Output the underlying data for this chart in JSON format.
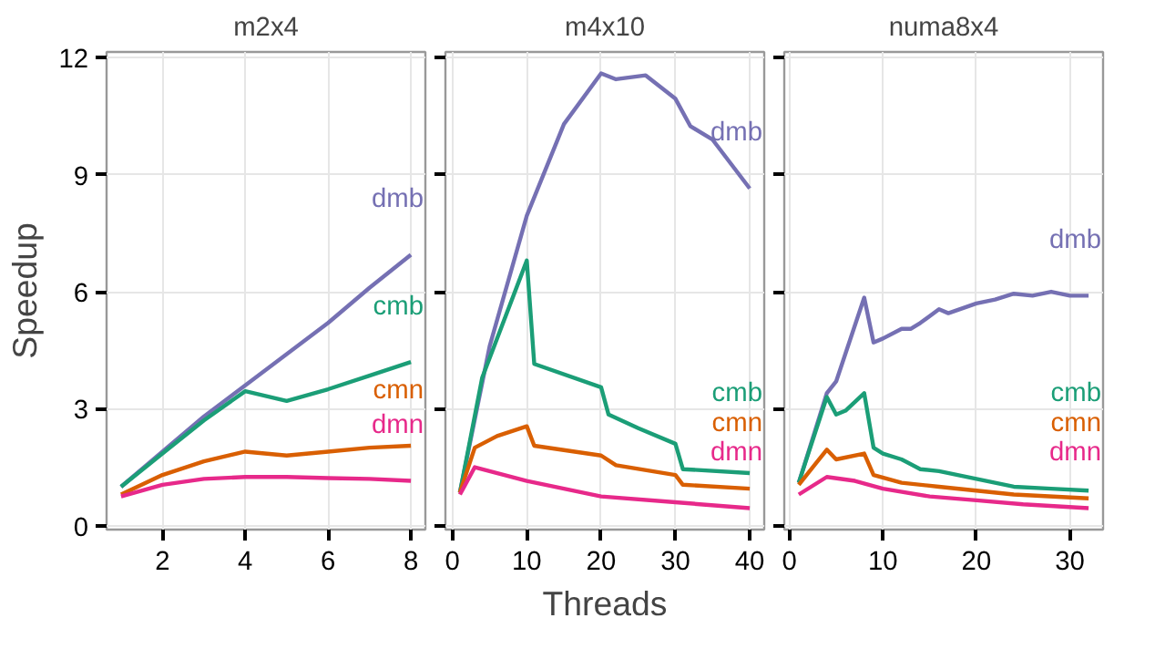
{
  "chart_data": [
    {
      "type": "line",
      "title": "m2x4",
      "ylabel": "Speedup",
      "xlim": [
        0.65,
        8.35
      ],
      "xticks": [
        2,
        4,
        6,
        8
      ],
      "ylim": [
        -0.1,
        12.15
      ],
      "yticks": [
        0,
        3,
        6,
        9,
        12
      ],
      "grid": true,
      "x": [
        1,
        2,
        3,
        4,
        5,
        6,
        7,
        8
      ],
      "series": [
        {
          "name": "dmb",
          "color": "#7570b3",
          "values": [
            1,
            1.9,
            2.8,
            3.6,
            4.4,
            5.2,
            6.1,
            6.95
          ]
        },
        {
          "name": "cmb",
          "color": "#1b9e77",
          "values": [
            1,
            1.85,
            2.7,
            3.45,
            3.2,
            3.5,
            3.85,
            4.2
          ]
        },
        {
          "name": "cmn",
          "color": "#d95f02",
          "values": [
            0.8,
            1.3,
            1.65,
            1.9,
            1.8,
            1.9,
            2.0,
            2.05
          ]
        },
        {
          "name": "dmn",
          "color": "#e7298a",
          "values": [
            0.75,
            1.05,
            1.2,
            1.25,
            1.25,
            1.22,
            1.2,
            1.15
          ]
        }
      ]
    },
    {
      "type": "line",
      "title": "m4x10",
      "xlabel": "Threads",
      "xlim": [
        -0.95,
        41.95
      ],
      "xticks": [
        0,
        10,
        20,
        30,
        40
      ],
      "ylim": [
        -0.1,
        12.15
      ],
      "yticks": [
        0,
        3,
        6,
        9,
        12
      ],
      "grid": true,
      "tick_labels": "x",
      "series": [
        {
          "name": "dmb",
          "color": "#7570b3",
          "x": [
            1,
            5,
            10,
            15,
            20,
            22,
            26,
            30,
            32,
            35,
            40
          ],
          "values": [
            0.85,
            4.6,
            7.95,
            10.3,
            11.6,
            11.45,
            11.55,
            10.95,
            10.25,
            9.9,
            8.65
          ]
        },
        {
          "name": "cmb",
          "color": "#1b9e77",
          "x": [
            1,
            4,
            10,
            11,
            20,
            21,
            25,
            30,
            31,
            40
          ],
          "values": [
            0.85,
            3.8,
            6.8,
            4.15,
            3.55,
            2.85,
            2.5,
            2.1,
            1.45,
            1.35
          ]
        },
        {
          "name": "cmn",
          "color": "#d95f02",
          "x": [
            1,
            3,
            6,
            10,
            11,
            20,
            22,
            30,
            31,
            40
          ],
          "values": [
            0.85,
            2.0,
            2.3,
            2.55,
            2.05,
            1.8,
            1.55,
            1.3,
            1.05,
            0.95
          ]
        },
        {
          "name": "dmn",
          "color": "#e7298a",
          "x": [
            1,
            3,
            10,
            20,
            30,
            40
          ],
          "values": [
            0.8,
            1.5,
            1.15,
            0.75,
            0.6,
            0.45
          ]
        }
      ]
    },
    {
      "type": "line",
      "title": "numa8x4",
      "xlim": [
        -0.55,
        33.55
      ],
      "xticks": [
        0,
        10,
        20,
        30
      ],
      "ylim": [
        -0.1,
        12.15
      ],
      "yticks": [
        0,
        3,
        6,
        9,
        12
      ],
      "grid": true,
      "tick_labels": "x",
      "series": [
        {
          "name": "dmb",
          "color": "#7570b3",
          "x": [
            1,
            4,
            5,
            8,
            9,
            10,
            12,
            13,
            14,
            16,
            17,
            20,
            22,
            24,
            26,
            28,
            30,
            32
          ],
          "values": [
            1.1,
            3.4,
            3.7,
            5.85,
            4.7,
            4.8,
            5.05,
            5.05,
            5.2,
            5.55,
            5.45,
            5.7,
            5.8,
            5.95,
            5.9,
            6.0,
            5.9,
            5.9
          ]
        },
        {
          "name": "cmb",
          "color": "#1b9e77",
          "x": [
            1,
            4,
            5,
            6,
            8,
            9,
            10,
            12,
            14,
            16,
            20,
            24,
            28,
            32
          ],
          "values": [
            1.1,
            3.3,
            2.85,
            2.95,
            3.4,
            2.0,
            1.85,
            1.7,
            1.45,
            1.4,
            1.2,
            1.0,
            0.95,
            0.9
          ]
        },
        {
          "name": "cmn",
          "color": "#d95f02",
          "x": [
            1,
            4,
            5,
            8,
            9,
            12,
            16,
            20,
            24,
            32
          ],
          "values": [
            1.05,
            1.95,
            1.7,
            1.85,
            1.3,
            1.1,
            1.0,
            0.9,
            0.8,
            0.7
          ]
        },
        {
          "name": "dmn",
          "color": "#e7298a",
          "x": [
            1,
            4,
            7,
            10,
            15,
            20,
            25,
            32
          ],
          "values": [
            0.8,
            1.25,
            1.15,
            0.95,
            0.75,
            0.65,
            0.55,
            0.45
          ]
        }
      ]
    }
  ]
}
